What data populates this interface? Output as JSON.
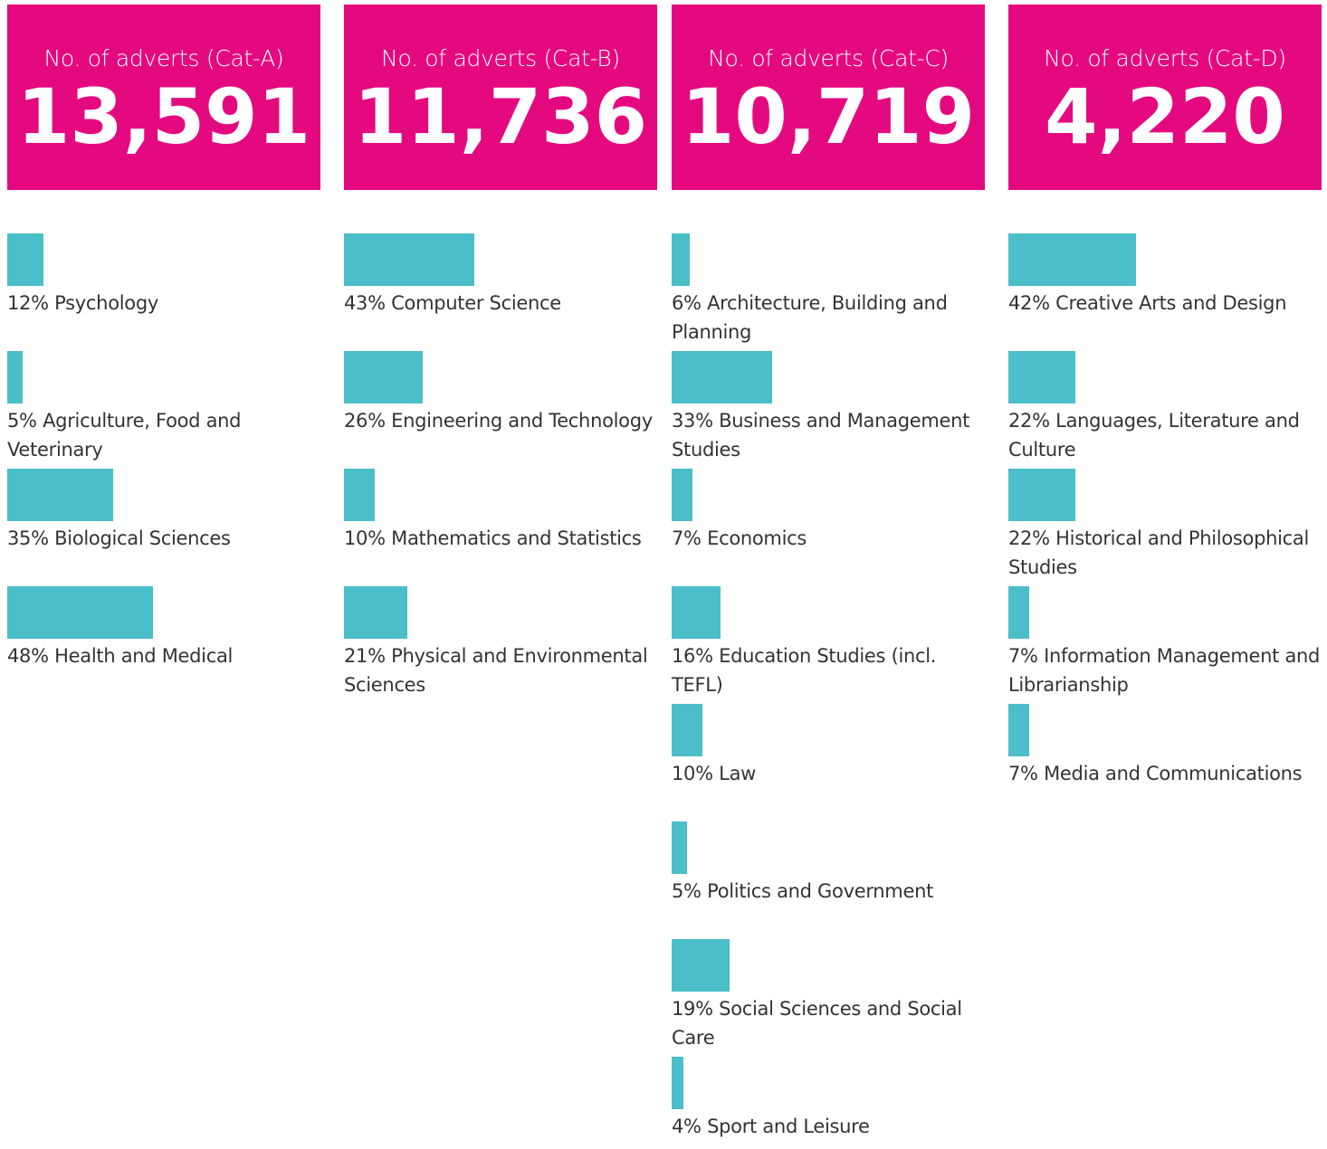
{
  "chart_data": [
    {
      "type": "bar",
      "title": "No. of adverts (Cat-A)",
      "total": "13,591",
      "color": "#4abec9",
      "xlim": [
        0,
        100
      ],
      "categories": [
        "Psychology",
        "Agriculture, Food and Veterinary",
        "Biological Sciences",
        "Health and Medical"
      ],
      "values": [
        12,
        5,
        35,
        48
      ],
      "value_labels": [
        "12%",
        "5%",
        "35%",
        "48%"
      ]
    },
    {
      "type": "bar",
      "title": "No. of adverts (Cat-B)",
      "total": "11,736",
      "color": "#4abec9",
      "xlim": [
        0,
        100
      ],
      "categories": [
        "Computer Science",
        "Engineering and Technology",
        "Mathematics and Statistics",
        "Physical and Environmental Sciences"
      ],
      "values": [
        43,
        26,
        10,
        21
      ],
      "value_labels": [
        "43%",
        "26%",
        "10%",
        "21%"
      ]
    },
    {
      "type": "bar",
      "title": "No. of adverts (Cat-C)",
      "total": "10,719",
      "color": "#4abec9",
      "xlim": [
        0,
        100
      ],
      "categories": [
        "Architecture, Building and Planning",
        "Business and Management Studies",
        "Economics",
        "Education Studies (incl. TEFL)",
        "Law",
        "Politics and Government",
        "Social Sciences and Social Care",
        "Sport and Leisure"
      ],
      "values": [
        6,
        33,
        7,
        16,
        10,
        5,
        19,
        4
      ],
      "value_labels": [
        "6%",
        "33%",
        "7%",
        "16%",
        "10%",
        "5%",
        "19%",
        "4%"
      ]
    },
    {
      "type": "bar",
      "title": "No. of adverts (Cat-D)",
      "total": "4,220",
      "color": "#4abec9",
      "xlim": [
        0,
        100
      ],
      "categories": [
        "Creative Arts and Design",
        "Languages, Literature and Culture",
        "Historical and Philosophical Studies",
        "Information Management and Librarianship",
        "Media and Communications"
      ],
      "values": [
        42,
        22,
        22,
        7,
        7
      ],
      "value_labels": [
        "42%",
        "22%",
        "22%",
        "7%",
        "7%"
      ]
    }
  ]
}
